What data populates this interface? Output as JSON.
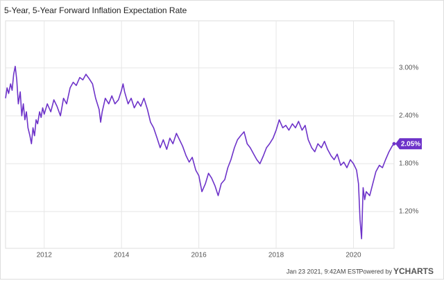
{
  "chart_data": {
    "type": "line",
    "title": "5-Year, 5-Year Forward Inflation Expectation Rate",
    "footer": "Jan 23 2021, 9:42AM EST.",
    "brand_prefix": "Powered by",
    "brand": "YCHARTS",
    "x": [
      2011.0,
      2011.04,
      2011.08,
      2011.13,
      2011.17,
      2011.21,
      2011.25,
      2011.29,
      2011.33,
      2011.38,
      2011.42,
      2011.46,
      2011.5,
      2011.54,
      2011.58,
      2011.63,
      2011.67,
      2011.71,
      2011.75,
      2011.79,
      2011.83,
      2011.88,
      2011.92,
      2011.96,
      2012.0,
      2012.08,
      2012.17,
      2012.25,
      2012.33,
      2012.42,
      2012.5,
      2012.58,
      2012.67,
      2012.75,
      2012.83,
      2012.92,
      2013.0,
      2013.08,
      2013.17,
      2013.25,
      2013.33,
      2013.42,
      2013.46,
      2013.5,
      2013.58,
      2013.67,
      2013.75,
      2013.83,
      2013.92,
      2014.0,
      2014.04,
      2014.08,
      2014.17,
      2014.25,
      2014.33,
      2014.42,
      2014.5,
      2014.58,
      2014.67,
      2014.75,
      2014.83,
      2014.92,
      2015.0,
      2015.08,
      2015.17,
      2015.25,
      2015.33,
      2015.42,
      2015.5,
      2015.58,
      2015.67,
      2015.75,
      2015.83,
      2015.92,
      2016.0,
      2016.08,
      2016.17,
      2016.25,
      2016.33,
      2016.42,
      2016.5,
      2016.58,
      2016.67,
      2016.75,
      2016.83,
      2016.92,
      2017.0,
      2017.08,
      2017.17,
      2017.25,
      2017.33,
      2017.42,
      2017.5,
      2017.58,
      2017.67,
      2017.75,
      2017.83,
      2017.92,
      2018.0,
      2018.08,
      2018.17,
      2018.25,
      2018.33,
      2018.42,
      2018.5,
      2018.58,
      2018.67,
      2018.75,
      2018.83,
      2018.92,
      2019.0,
      2019.08,
      2019.17,
      2019.25,
      2019.33,
      2019.42,
      2019.5,
      2019.58,
      2019.67,
      2019.75,
      2019.83,
      2019.92,
      2020.0,
      2020.08,
      2020.13,
      2020.17,
      2020.21,
      2020.25,
      2020.29,
      2020.33,
      2020.42,
      2020.5,
      2020.58,
      2020.67,
      2020.75,
      2020.83,
      2020.92,
      2021.0,
      2021.05
    ],
    "series": [
      {
        "name": "5-Year, 5-Year Forward Inflation Expectation Rate",
        "color": "#6d32c9",
        "values": [
          2.62,
          2.75,
          2.68,
          2.8,
          2.72,
          2.92,
          3.02,
          2.85,
          2.55,
          2.7,
          2.4,
          2.55,
          2.35,
          2.45,
          2.25,
          2.15,
          2.05,
          2.25,
          2.15,
          2.35,
          2.3,
          2.45,
          2.38,
          2.5,
          2.42,
          2.55,
          2.45,
          2.6,
          2.52,
          2.4,
          2.62,
          2.55,
          2.75,
          2.82,
          2.78,
          2.88,
          2.85,
          2.92,
          2.86,
          2.8,
          2.62,
          2.48,
          2.32,
          2.45,
          2.62,
          2.55,
          2.65,
          2.55,
          2.6,
          2.72,
          2.8,
          2.7,
          2.55,
          2.62,
          2.5,
          2.58,
          2.52,
          2.62,
          2.48,
          2.32,
          2.25,
          2.12,
          2.0,
          2.1,
          1.98,
          2.12,
          2.05,
          2.18,
          2.1,
          2.02,
          1.9,
          1.82,
          1.88,
          1.72,
          1.65,
          1.45,
          1.55,
          1.68,
          1.62,
          1.52,
          1.4,
          1.55,
          1.6,
          1.75,
          1.85,
          2.0,
          2.1,
          2.15,
          2.2,
          2.05,
          2.0,
          1.92,
          1.85,
          1.8,
          1.9,
          2.0,
          2.05,
          2.12,
          2.22,
          2.35,
          2.25,
          2.28,
          2.22,
          2.3,
          2.25,
          2.33,
          2.22,
          2.28,
          2.1,
          2.0,
          1.95,
          2.05,
          2.0,
          2.08,
          1.98,
          1.9,
          1.85,
          1.92,
          1.78,
          1.82,
          1.75,
          1.85,
          1.8,
          1.72,
          1.55,
          1.1,
          0.86,
          1.5,
          1.35,
          1.45,
          1.4,
          1.55,
          1.7,
          1.78,
          1.75,
          1.85,
          1.95,
          2.02,
          2.05
        ]
      }
    ],
    "last_value_label": {
      "value": 2.05,
      "label": "2.05%"
    },
    "xlim": [
      2011.0,
      2021.05
    ],
    "xticks": [
      2012,
      2014,
      2016,
      2018,
      2020
    ],
    "ylim": [
      0.74,
      3.59
    ],
    "yticks": [
      {
        "value": 1.2,
        "label": "1.20%"
      },
      {
        "value": 1.8,
        "label": "1.80%"
      },
      {
        "value": 2.4,
        "label": "2.40%"
      },
      {
        "value": 3.0,
        "label": "3.00%"
      }
    ],
    "grid": true
  }
}
